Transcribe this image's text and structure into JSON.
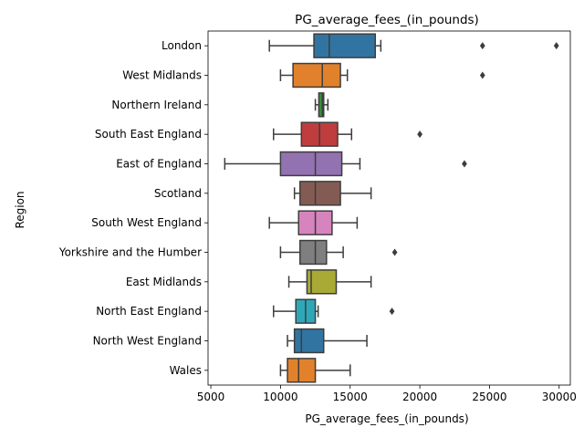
{
  "chart_data": {
    "type": "boxplot",
    "title": "PG_average_fees_(in_pounds)",
    "xlabel": "PG_average_fees_(in_pounds)",
    "ylabel": "Region",
    "xlim": [
      4800,
      30800
    ],
    "xticks": [
      5000,
      10000,
      15000,
      20000,
      25000,
      30000
    ],
    "grid": false,
    "categories": [
      "London",
      "West Midlands",
      "Northern Ireland",
      "South East England",
      "East of England",
      "Scotland",
      "South West England",
      "Yorkshire and the Humber",
      "East Midlands",
      "North East England",
      "North West England",
      "Wales"
    ],
    "series": [
      {
        "whisker_low": 9200,
        "q1": 12400,
        "median": 13500,
        "q3": 16800,
        "whisker_high": 17200,
        "outliers": [
          24500,
          29800
        ],
        "color": "#3274a1"
      },
      {
        "whisker_low": 10000,
        "q1": 10900,
        "median": 13000,
        "q3": 14300,
        "whisker_high": 14800,
        "outliers": [
          24500
        ],
        "color": "#e1812c"
      },
      {
        "whisker_low": 12500,
        "q1": 12750,
        "median": 13000,
        "q3": 13100,
        "whisker_high": 13400,
        "outliers": [],
        "color": "#3a923a"
      },
      {
        "whisker_low": 9500,
        "q1": 11500,
        "median": 12800,
        "q3": 14100,
        "whisker_high": 15100,
        "outliers": [
          20000
        ],
        "color": "#c03d3e"
      },
      {
        "whisker_low": 6000,
        "q1": 10000,
        "median": 12500,
        "q3": 14400,
        "whisker_high": 15700,
        "outliers": [
          23200
        ],
        "color": "#9372b2"
      },
      {
        "whisker_low": 11000,
        "q1": 11400,
        "median": 12500,
        "q3": 14300,
        "whisker_high": 16500,
        "outliers": [],
        "color": "#845b53"
      },
      {
        "whisker_low": 9200,
        "q1": 11300,
        "median": 12500,
        "q3": 13700,
        "whisker_high": 15500,
        "outliers": [],
        "color": "#d684bd"
      },
      {
        "whisker_low": 10000,
        "q1": 11400,
        "median": 12500,
        "q3": 13300,
        "whisker_high": 14500,
        "outliers": [
          18200
        ],
        "color": "#7f7f7f"
      },
      {
        "whisker_low": 10600,
        "q1": 11900,
        "median": 12200,
        "q3": 14000,
        "whisker_high": 16500,
        "outliers": [],
        "color": "#a9aa35"
      },
      {
        "whisker_low": 9500,
        "q1": 11100,
        "median": 11800,
        "q3": 12500,
        "whisker_high": 12700,
        "outliers": [
          18000
        ],
        "color": "#2ea8b9"
      },
      {
        "whisker_low": 10500,
        "q1": 11000,
        "median": 11500,
        "q3": 13100,
        "whisker_high": 16200,
        "outliers": [],
        "color": "#3274a1"
      },
      {
        "whisker_low": 10000,
        "q1": 10500,
        "median": 11300,
        "q3": 12500,
        "whisker_high": 15000,
        "outliers": [],
        "color": "#e1812c"
      }
    ]
  }
}
